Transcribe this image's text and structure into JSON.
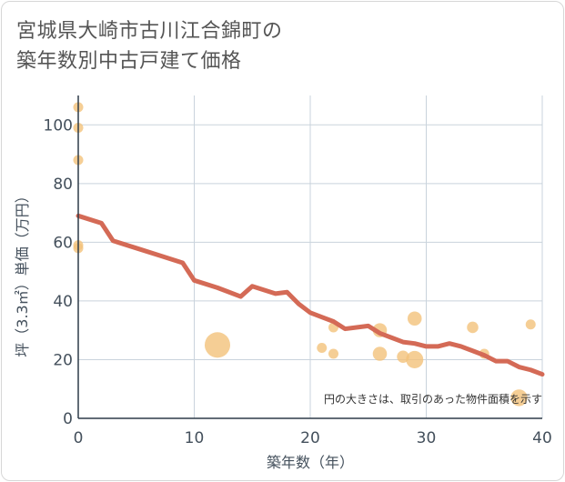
{
  "title": {
    "line1": "宮城県大崎市古川江合錦町の",
    "line2": "築年数別中古戸建て価格"
  },
  "chart_data": {
    "type": "scatter",
    "xlabel": "築年数（年）",
    "ylabel": "坪（3.3㎡）単価（万円）",
    "xlim": [
      0,
      40
    ],
    "ylim": [
      0,
      110
    ],
    "x_ticks": [
      0,
      10,
      20,
      30,
      40
    ],
    "y_ticks": [
      0,
      20,
      40,
      60,
      80,
      100
    ],
    "grid": true,
    "note": "円の大きさは、取引のあった物件面積を示す",
    "colors": {
      "bubble": "#f2c27a",
      "trend": "#d46a56",
      "grid": "#c9d3dc"
    },
    "points": [
      {
        "x": 0,
        "y": 106,
        "size": 1.0
      },
      {
        "x": 0,
        "y": 99,
        "size": 1.0
      },
      {
        "x": 0,
        "y": 88,
        "size": 1.0
      },
      {
        "x": 0,
        "y": 59,
        "size": 1.0
      },
      {
        "x": 0,
        "y": 58,
        "size": 1.0
      },
      {
        "x": 12,
        "y": 25,
        "size": 6.5
      },
      {
        "x": 21,
        "y": 24,
        "size": 1.0
      },
      {
        "x": 22,
        "y": 31,
        "size": 1.0
      },
      {
        "x": 22,
        "y": 22,
        "size": 1.0
      },
      {
        "x": 26,
        "y": 30,
        "size": 2.0
      },
      {
        "x": 26,
        "y": 22,
        "size": 2.0
      },
      {
        "x": 28,
        "y": 21,
        "size": 1.5
      },
      {
        "x": 29,
        "y": 34,
        "size": 2.0
      },
      {
        "x": 29,
        "y": 20,
        "size": 3.0
      },
      {
        "x": 34,
        "y": 31,
        "size": 1.3
      },
      {
        "x": 35,
        "y": 22,
        "size": 1.0
      },
      {
        "x": 38,
        "y": 7,
        "size": 2.8
      },
      {
        "x": 39,
        "y": 32,
        "size": 1.0
      }
    ],
    "trend": {
      "x": [
        0,
        2,
        3,
        5,
        7,
        9,
        10,
        12,
        14,
        15,
        17,
        18,
        19,
        20,
        21,
        22,
        23,
        25,
        26,
        27,
        28,
        29,
        30,
        31,
        32,
        33,
        34,
        35,
        36,
        37,
        38,
        39,
        40
      ],
      "y": [
        69,
        66.5,
        60.5,
        58,
        55.5,
        53,
        47,
        44.5,
        41.5,
        45,
        42.5,
        43,
        39,
        36,
        34.5,
        33,
        30.5,
        31.5,
        29,
        27.5,
        26,
        25.5,
        24.5,
        24.5,
        25.5,
        24.5,
        23,
        21.5,
        19.5,
        19.5,
        17.5,
        16.5,
        15
      ]
    }
  }
}
